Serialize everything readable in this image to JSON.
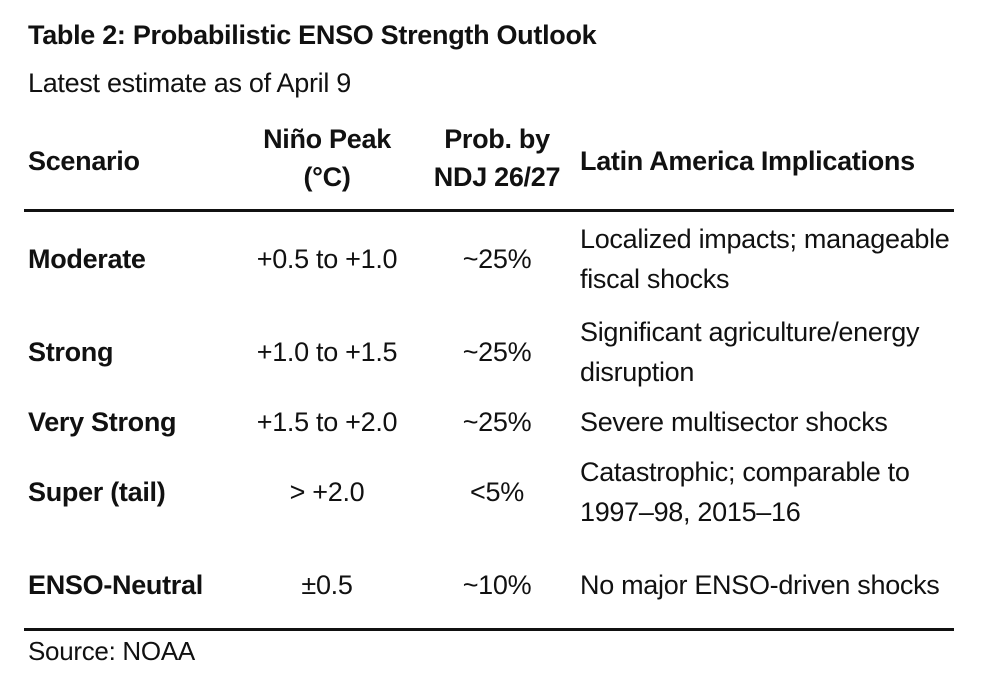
{
  "title": "Table 2: Probabilistic ENSO Strength Outlook",
  "subtitle": "Latest estimate as of April 9",
  "headers": {
    "scenario": "Scenario",
    "nino_line1": "Niño Peak",
    "nino_line2": "(°C)",
    "prob_line1": "Prob. by",
    "prob_line2": "NDJ 26/27",
    "latam": "Latin America Implications"
  },
  "rows": [
    {
      "scenario": "Moderate",
      "nino": "+0.5 to +1.0",
      "prob": "~25%",
      "latam_line1": "Localized impacts; manageable",
      "latam_line2": "fiscal shocks"
    },
    {
      "scenario": "Strong",
      "nino": "+1.0 to +1.5",
      "prob": "~25%",
      "latam_line1": "Significant agriculture/energy",
      "latam_line2": "disruption"
    },
    {
      "scenario": "Very Strong",
      "nino": "+1.5 to +2.0",
      "prob": "~25%",
      "latam_line1": "Severe multisector shocks",
      "latam_line2": ""
    },
    {
      "scenario": "Super (tail)",
      "nino": "> +2.0",
      "prob": "<5%",
      "latam_line1": "Catastrophic; comparable to",
      "latam_line2": "1997–98, 2015–16"
    },
    {
      "scenario": "ENSO-Neutral",
      "nino": "±0.5",
      "prob": "~10%",
      "latam_line1": "No major ENSO-driven shocks",
      "latam_line2": ""
    }
  ],
  "source": "Source: NOAA"
}
